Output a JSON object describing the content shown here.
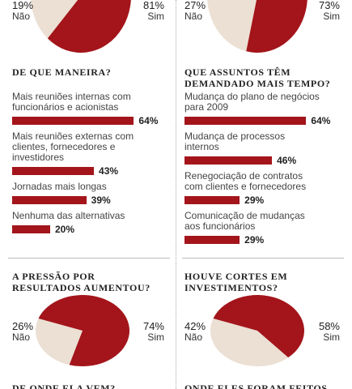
{
  "chart_data": [
    {
      "type": "pie",
      "categories": [
        "Não",
        "Sim"
      ],
      "values": [
        19,
        81
      ],
      "value_labels": [
        "19%",
        "81%"
      ],
      "colors": [
        "#ebe0d3",
        "#a3151b"
      ]
    },
    {
      "type": "pie",
      "categories": [
        "Não",
        "Sim"
      ],
      "values": [
        27,
        73
      ],
      "value_labels": [
        "27%",
        "73%"
      ],
      "colors": [
        "#ebe0d3",
        "#a3151b"
      ]
    },
    {
      "type": "bar",
      "title": "DE QUE MANEIRA?",
      "categories": [
        "Mais reuniões internas com funcionários e acionistas",
        "Mais reuniões externas com clientes, fornecedores e investidores",
        "Jornadas mais longas",
        "Nenhuma das alternativas"
      ],
      "values": [
        64,
        43,
        39,
        20
      ],
      "value_labels": [
        "64%",
        "43%",
        "39%",
        "20%"
      ],
      "color": "#a3151b"
    },
    {
      "type": "bar",
      "title": "QUE ASSUNTOS TÊM DEMANDADO MAIS TEMPO?",
      "categories": [
        "Mudança do plano de negócios para 2009",
        "Mudança de processos internos",
        "Renegociação de contratos com clientes e fornecedores",
        "Comunicação de mudanças aos funcionários"
      ],
      "values": [
        64,
        46,
        29,
        29
      ],
      "value_labels": [
        "64%",
        "46%",
        "29%",
        "29%"
      ],
      "color": "#a3151b"
    },
    {
      "type": "pie",
      "title": "A PRESSÃO POR RESULTADOS AUMENTOU?",
      "categories": [
        "Não",
        "Sim"
      ],
      "values": [
        26,
        74
      ],
      "value_labels": [
        "26%",
        "74%"
      ],
      "colors": [
        "#ebe0d3",
        "#a3151b"
      ]
    },
    {
      "type": "pie",
      "title": "HOUVE CORTES EM INVESTIMENTOS?",
      "categories": [
        "Não",
        "Sim"
      ],
      "values": [
        42,
        58
      ],
      "value_labels": [
        "42%",
        "58%"
      ],
      "colors": [
        "#ebe0d3",
        "#a3151b"
      ]
    }
  ],
  "cut_off_headings": [
    "DE ONDE ELA VEM?",
    "ONDE ELES FORAM FEITOS"
  ]
}
